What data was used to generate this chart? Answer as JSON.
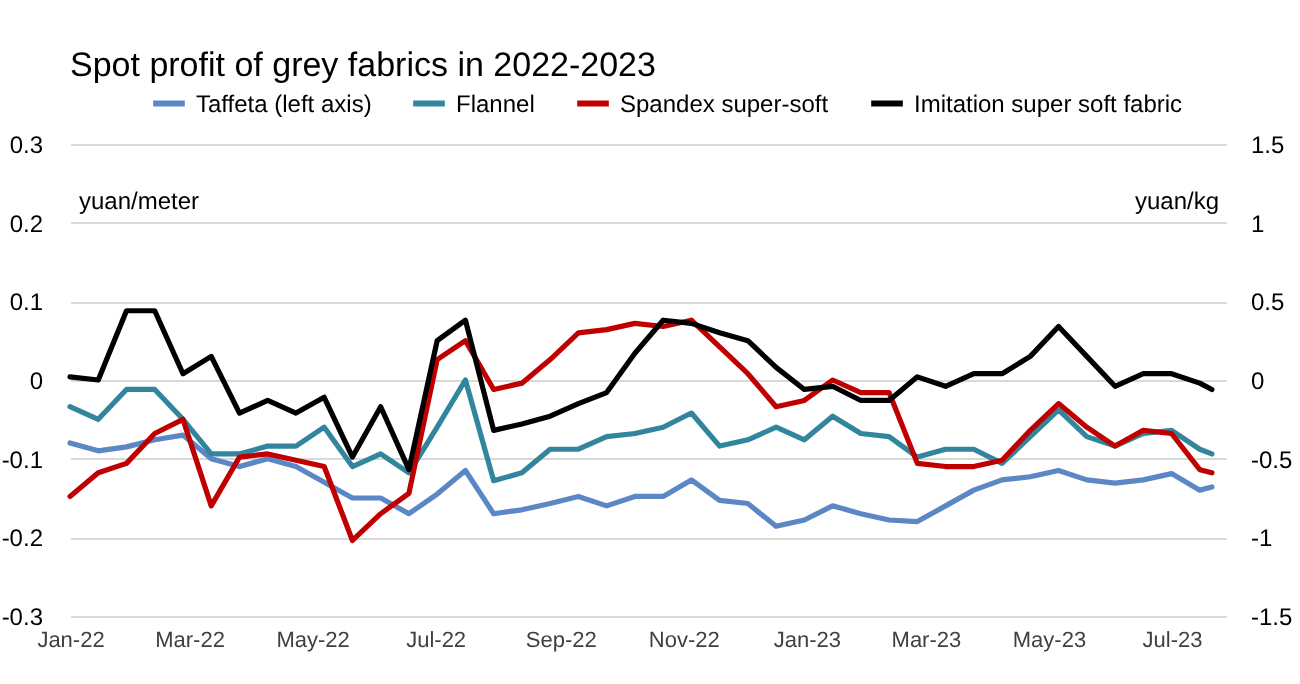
{
  "chart_data": {
    "type": "line",
    "title": "Spot profit of grey fabrics in 2022-2023",
    "ylabel": "yuan/meter",
    "y2label": "yuan/kg",
    "x": [
      "2022-01-01",
      "2022-01-15",
      "2022-01-29",
      "2022-02-12",
      "2022-02-26",
      "2022-03-12",
      "2022-03-26",
      "2022-04-09",
      "2022-04-23",
      "2022-05-07",
      "2022-05-21",
      "2022-06-04",
      "2022-06-18",
      "2022-07-02",
      "2022-07-16",
      "2022-07-30",
      "2022-08-13",
      "2022-08-27",
      "2022-09-10",
      "2022-09-24",
      "2022-10-08",
      "2022-10-22",
      "2022-11-05",
      "2022-11-19",
      "2022-12-03",
      "2022-12-17",
      "2022-12-31",
      "2023-01-14",
      "2023-01-28",
      "2023-02-11",
      "2023-02-25",
      "2023-03-11",
      "2023-03-25",
      "2023-04-08",
      "2023-04-22",
      "2023-05-06",
      "2023-05-20",
      "2023-06-03",
      "2023-06-17",
      "2023-07-01",
      "2023-07-15",
      "2023-07-21"
    ],
    "series": [
      {
        "name": "Taffeta (left axis)",
        "color": "#5b87c5",
        "values": [
          -0.08,
          -0.09,
          -0.085,
          -0.076,
          -0.07,
          -0.1,
          -0.11,
          -0.1,
          -0.11,
          -0.13,
          -0.15,
          -0.15,
          -0.17,
          -0.145,
          -0.115,
          -0.17,
          -0.165,
          -0.157,
          -0.148,
          -0.16,
          -0.148,
          -0.148,
          -0.127,
          -0.153,
          -0.157,
          -0.186,
          -0.178,
          -0.16,
          -0.17,
          -0.178,
          -0.18,
          -0.16,
          -0.14,
          -0.127,
          -0.123,
          -0.115,
          -0.127,
          -0.131,
          -0.127,
          -0.119,
          -0.14,
          -0.136
        ]
      },
      {
        "name": "Flannel",
        "color": "#31859c",
        "axis": "y2",
        "values": [
          -0.17,
          -0.25,
          -0.06,
          -0.06,
          -0.25,
          -0.47,
          -0.47,
          -0.42,
          -0.42,
          -0.3,
          -0.55,
          -0.47,
          -0.59,
          -0.3,
          0,
          -0.64,
          -0.59,
          -0.44,
          -0.44,
          -0.36,
          -0.34,
          -0.3,
          -0.21,
          -0.42,
          -0.38,
          -0.3,
          -0.38,
          -0.23,
          -0.34,
          -0.36,
          -0.49,
          -0.44,
          -0.44,
          -0.53,
          -0.36,
          -0.19,
          -0.36,
          -0.42,
          -0.34,
          -0.32,
          -0.44,
          -0.47
        ]
      },
      {
        "name": "Spandex super-soft",
        "color": "#c00000",
        "axis": "y2",
        "values": [
          -0.74,
          -0.59,
          -0.53,
          -0.34,
          -0.25,
          -0.8,
          -0.49,
          -0.47,
          -0.51,
          -0.55,
          -1.02,
          -0.85,
          -0.72,
          0.13,
          0.25,
          -0.06,
          -0.02,
          0.13,
          0.3,
          0.32,
          0.36,
          0.34,
          0.38,
          0.21,
          0.04,
          -0.17,
          -0.13,
          0,
          -0.08,
          -0.08,
          -0.53,
          -0.55,
          -0.55,
          -0.51,
          -0.32,
          -0.15,
          -0.3,
          -0.42,
          -0.32,
          -0.34,
          -0.57,
          -0.59
        ]
      },
      {
        "name": "Imitation super soft fabric",
        "color": "#000000",
        "axis": "y2",
        "values": [
          0.02,
          0,
          0.44,
          0.44,
          0.04,
          0.15,
          -0.21,
          -0.13,
          -0.21,
          -0.11,
          -0.49,
          -0.17,
          -0.57,
          0.25,
          0.38,
          -0.32,
          -0.28,
          -0.23,
          -0.15,
          -0.08,
          0.17,
          0.38,
          0.36,
          0.3,
          0.25,
          0.08,
          -0.06,
          -0.04,
          -0.13,
          -0.13,
          0.02,
          -0.04,
          0.04,
          0.04,
          0.15,
          0.34,
          0.15,
          -0.04,
          0.04,
          0.04,
          -0.02,
          -0.06
        ]
      }
    ],
    "xlim": [
      "2022-01-01",
      "2023-07-28"
    ],
    "xticks": [
      {
        "value": "2022-01-01",
        "label": "Jan-22"
      },
      {
        "value": "2022-03-01",
        "label": "Mar-22"
      },
      {
        "value": "2022-05-01",
        "label": "May-22"
      },
      {
        "value": "2022-07-01",
        "label": "Jul-22"
      },
      {
        "value": "2022-09-01",
        "label": "Sep-22"
      },
      {
        "value": "2022-11-01",
        "label": "Nov-22"
      },
      {
        "value": "2023-01-01",
        "label": "Jan-23"
      },
      {
        "value": "2023-03-01",
        "label": "Mar-23"
      },
      {
        "value": "2023-05-01",
        "label": "May-23"
      },
      {
        "value": "2023-07-01",
        "label": "Jul-23"
      }
    ],
    "ylim": [
      -0.3,
      0.3
    ],
    "yticks": [
      -0.3,
      -0.2,
      -0.1,
      0,
      0.1,
      0.2,
      0.3
    ],
    "y2lim": [
      -1.5,
      1.5
    ],
    "y2ticks": [
      -1.5,
      -1,
      -0.5,
      0,
      0.5,
      1,
      1.5
    ],
    "grid": "y",
    "legend": "top"
  }
}
